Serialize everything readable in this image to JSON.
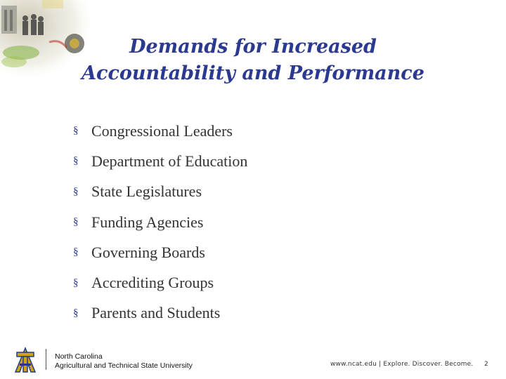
{
  "slide": {
    "title_line1": "Demands for Increased",
    "title_line2": "Accountability and Performance",
    "bullet_marker": "§",
    "bullets": [
      "Congressional Leaders",
      "Department of Education",
      "State Legislatures",
      "Funding Agencies",
      "Governing Boards",
      "Accrediting Groups",
      "Parents and Students"
    ]
  },
  "footer": {
    "org_line1": "North Carolina",
    "org_line2": "Agricultural and Technical State University",
    "tagline": "www.ncat.edu | Explore. Discover. Become.",
    "page_number": "2"
  },
  "colors": {
    "title": "#2b3990",
    "body_text": "#333333",
    "logo_gold": "#d4a017",
    "logo_blue": "#1f3a8a"
  }
}
